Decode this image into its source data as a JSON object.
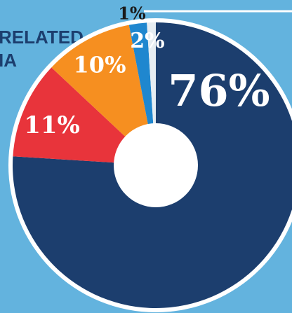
{
  "chart_data": {
    "type": "donut",
    "title_lines": [
      "RELATED",
      "IA"
    ],
    "values": [
      76,
      11,
      10,
      2,
      1
    ],
    "value_labels": [
      "76%",
      "11%",
      "10%",
      "2%",
      "1%"
    ],
    "colors": [
      "#1c3e6e",
      "#e8343b",
      "#f68f20",
      "#1f87cf",
      "#e6edf2"
    ]
  }
}
